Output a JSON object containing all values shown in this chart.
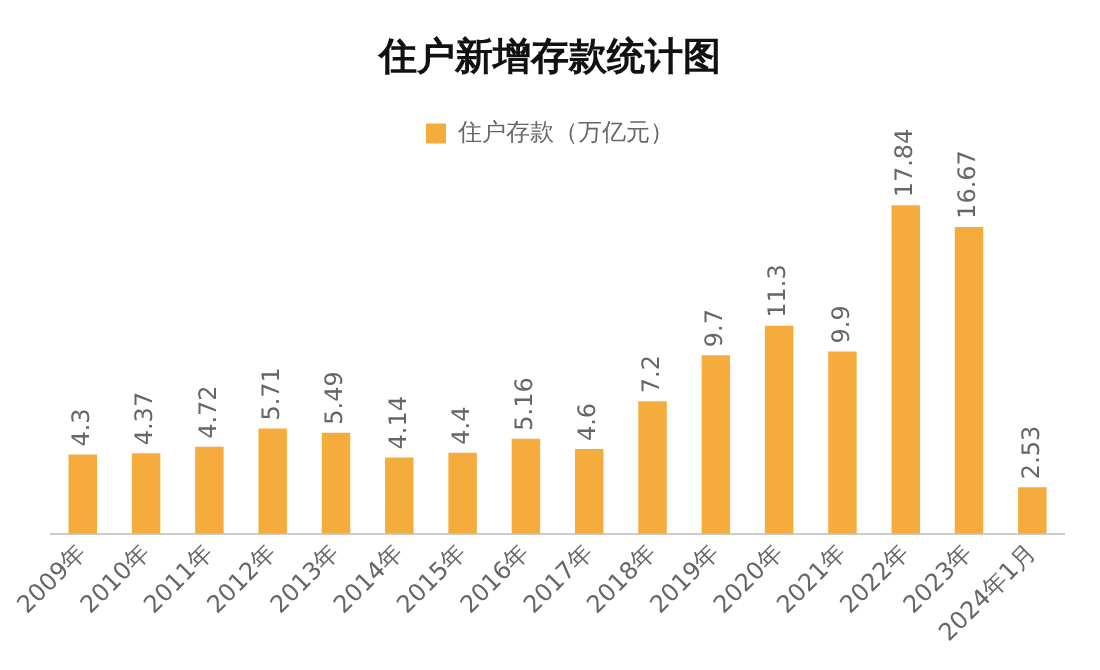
{
  "chart_data": {
    "type": "bar",
    "title": "住户新增存款统计图",
    "categories": [
      "2009年",
      "2010年",
      "2011年",
      "2012年",
      "2013年",
      "2014年",
      "2015年",
      "2016年",
      "2017年",
      "2018年",
      "2019年",
      "2020年",
      "2021年",
      "2022年",
      "2023年",
      "2024年1月"
    ],
    "series": [
      {
        "name": "住户存款（万亿元）",
        "color": "#f5ac3c",
        "values": [
          4.3,
          4.37,
          4.72,
          5.71,
          5.49,
          4.14,
          4.4,
          5.16,
          4.6,
          7.2,
          9.7,
          11.3,
          9.9,
          17.84,
          16.67,
          2.53
        ]
      }
    ],
    "data_labels": true,
    "legend": "top",
    "grid": false
  }
}
